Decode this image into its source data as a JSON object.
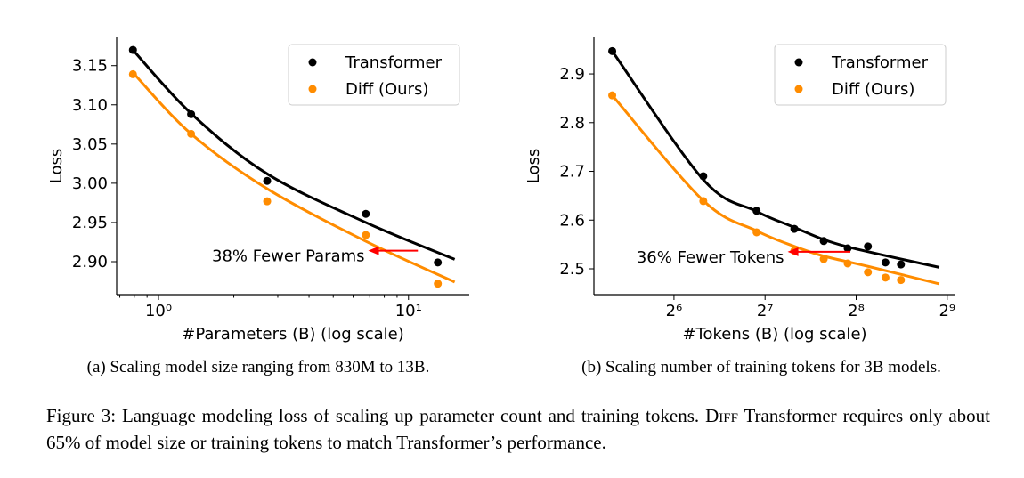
{
  "charts": [
    {
      "type": "scatter",
      "xlabel": "#Parameters (B) (log scale)",
      "ylabel": "Loss",
      "xscale": "log",
      "xlim": [
        0.68,
        17.5
      ],
      "ylim": [
        2.858,
        3.186
      ],
      "xticks": [
        {
          "value": 1,
          "label": "10⁰"
        },
        {
          "value": 10,
          "label": "10¹"
        }
      ],
      "xminorticks": [
        0.7,
        0.8,
        0.9,
        2,
        3,
        4,
        5,
        6,
        7,
        8,
        9
      ],
      "yticks": [
        {
          "value": 2.9,
          "label": "2.90"
        },
        {
          "value": 2.95,
          "label": "2.95"
        },
        {
          "value": 3.0,
          "label": "3.00"
        },
        {
          "value": 3.05,
          "label": "3.05"
        },
        {
          "value": 3.1,
          "label": "3.10"
        },
        {
          "value": 3.15,
          "label": "3.15"
        }
      ],
      "legend": "upper right",
      "series": [
        {
          "name": "Transformer",
          "color": "#000000",
          "x": [
            0.79,
            1.35,
            2.72,
            6.75,
            13.1
          ],
          "values": [
            3.17,
            3.088,
            3.003,
            2.961,
            2.899
          ],
          "fit_x": [
            0.79,
            1.35,
            2.72,
            6.75,
            15.3
          ],
          "fit_values": [
            3.17,
            3.089,
            3.012,
            2.95,
            2.903
          ]
        },
        {
          "name": "Diff (Ours)",
          "color": "#ff8c00",
          "x": [
            0.79,
            1.35,
            2.72,
            6.75,
            13.1
          ],
          "values": [
            3.139,
            3.063,
            2.977,
            2.934,
            2.872
          ],
          "fit_x": [
            0.79,
            1.35,
            2.72,
            6.75,
            15.3
          ],
          "fit_values": [
            3.141,
            3.063,
            2.993,
            2.926,
            2.874
          ]
        }
      ],
      "annotation": {
        "text": "38% Fewer Params",
        "color": "#ff0000",
        "arrow_from": [
          10.9,
          2.914
        ],
        "arrow_to": [
          6.9,
          2.914
        ]
      },
      "caption": "(a) Scaling model size ranging from 830M to 13B."
    },
    {
      "type": "scatter",
      "xlabel": "#Tokens (B) (log scale)",
      "ylabel": "Loss",
      "xscale": "log",
      "xlim": [
        34.8,
        545
      ],
      "ylim": [
        2.447,
        2.975
      ],
      "xticks": [
        {
          "value": 64,
          "label": "2⁶"
        },
        {
          "value": 128,
          "label": "2⁷"
        },
        {
          "value": 256,
          "label": "2⁸"
        },
        {
          "value": 512,
          "label": "2⁹"
        }
      ],
      "yticks": [
        2.5,
        2.6,
        2.7,
        2.8,
        2.9
      ],
      "legend": "upper right",
      "series": [
        {
          "name": "Transformer",
          "color": "#000000",
          "x": [
            40,
            80,
            120,
            160,
            200,
            240,
            280,
            320,
            360
          ],
          "values": [
            2.947,
            2.69,
            2.619,
            2.582,
            2.557,
            2.542,
            2.546,
            2.513,
            2.509
          ],
          "fit_x": [
            40,
            80,
            120,
            160,
            200,
            240,
            320,
            482
          ],
          "fit_values": [
            2.947,
            2.683,
            2.618,
            2.585,
            2.56,
            2.545,
            2.527,
            2.503
          ]
        },
        {
          "name": "Diff (Ours)",
          "color": "#ff8c00",
          "x": [
            40,
            80,
            120,
            160,
            200,
            240,
            280,
            320,
            360
          ],
          "values": [
            2.856,
            2.639,
            2.575,
            2.537,
            2.52,
            2.511,
            2.493,
            2.482,
            2.477
          ],
          "fit_x": [
            40,
            80,
            120,
            160,
            200,
            280,
            482
          ],
          "fit_values": [
            2.856,
            2.64,
            2.578,
            2.546,
            2.526,
            2.505,
            2.469
          ]
        }
      ],
      "annotation": {
        "text": "36% Fewer Tokens",
        "color": "#ff0000",
        "arrow_from": [
          245,
          2.535
        ],
        "arrow_to": [
          152,
          2.535
        ]
      },
      "caption": "(b) Scaling number of training tokens for 3B models."
    }
  ],
  "figure_caption": {
    "before": "Figure 3: Language modeling loss of scaling up parameter count and training tokens.",
    "name": "Diff",
    "after": "Transformer requires only about 65% of model size or training tokens to match Transformer’s performance."
  }
}
